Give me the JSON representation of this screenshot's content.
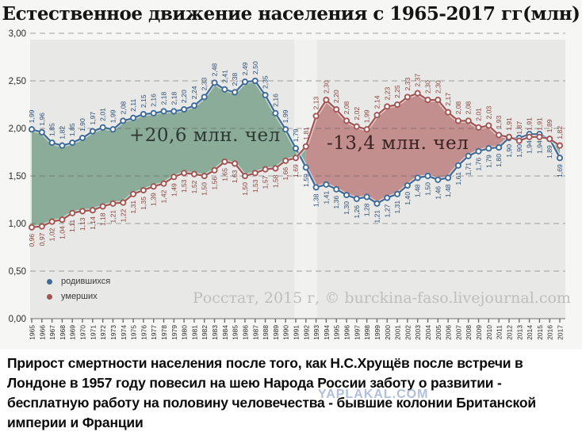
{
  "title": "Естественное движение населения с 1965-2017 гг(млн)",
  "annotations": {
    "surplus": "+20,6 млн. чел",
    "deficit": "-13,4 млн. чел"
  },
  "legend": {
    "items": [
      {
        "label": "родившихся",
        "color": "#3e6b99"
      },
      {
        "label": "умерших",
        "color": "#a25553"
      }
    ]
  },
  "watermark": "Росстат, 2015 г, © burckina-faso.livejournal.com",
  "caption": "Прирост смертности населения после того, как Н.С.Хрущёв после встречи в Лондоне в 1957 году повесил на шею Народа России заботу о развитии - бесплатную работу на половину человечества - бывшие колонии Британской империи и Франции",
  "overlay_watermark": "YAPLAKAL.COM",
  "chart_data": {
    "type": "line",
    "title": "Естественное движение населения с 1965-2017 гг(млн)",
    "x": [
      1965,
      1966,
      1967,
      1968,
      1969,
      1970,
      1971,
      1972,
      1973,
      1974,
      1975,
      1976,
      1977,
      1978,
      1979,
      1980,
      1981,
      1982,
      1983,
      1984,
      1985,
      1986,
      1987,
      1988,
      1989,
      1990,
      1991,
      1992,
      1993,
      1994,
      1995,
      1996,
      1997,
      1998,
      1999,
      2000,
      2001,
      2002,
      2003,
      2004,
      2005,
      2006,
      2007,
      2008,
      2009,
      2010,
      2011,
      2012,
      2013,
      2014,
      2015,
      2016,
      2017
    ],
    "series": [
      {
        "name": "родившихся",
        "color": "#3e6b99",
        "label_color": "#2d4e75",
        "values": [
          1.99,
          1.96,
          1.85,
          1.82,
          1.85,
          1.9,
          1.97,
          2.01,
          1.99,
          2.08,
          2.11,
          2.15,
          2.16,
          2.18,
          2.18,
          2.2,
          2.24,
          2.33,
          2.48,
          2.41,
          2.38,
          2.49,
          2.5,
          2.35,
          2.16,
          1.99,
          1.79,
          1.59,
          1.38,
          1.41,
          1.36,
          1.3,
          1.26,
          1.28,
          1.21,
          1.27,
          1.31,
          1.4,
          1.48,
          1.5,
          1.46,
          1.48,
          1.61,
          1.71,
          1.76,
          1.79,
          1.8,
          1.9,
          1.9,
          1.94,
          1.94,
          1.89,
          1.69
        ]
      },
      {
        "name": "умерших",
        "color": "#a25553",
        "label_color": "#89423f",
        "values": [
          0.96,
          0.97,
          1.02,
          1.04,
          1.11,
          1.13,
          1.14,
          1.18,
          1.21,
          1.22,
          1.31,
          1.35,
          1.39,
          1.42,
          1.49,
          1.53,
          1.52,
          1.5,
          1.56,
          1.65,
          1.63,
          1.5,
          1.53,
          1.57,
          1.58,
          1.66,
          1.69,
          1.81,
          2.13,
          2.3,
          2.2,
          2.08,
          2.02,
          1.99,
          2.14,
          2.23,
          2.25,
          2.33,
          2.37,
          2.3,
          2.3,
          2.17,
          2.08,
          2.08,
          2.01,
          2.03,
          1.93,
          1.91,
          1.87,
          1.91,
          1.91,
          1.89,
          1.82
        ]
      }
    ],
    "ylim": [
      0,
      3
    ],
    "yticks": [
      {
        "v": 3.0,
        "label": "3,00"
      },
      {
        "v": 2.5,
        "label": "2,50"
      },
      {
        "v": 2.0,
        "label": "2,00"
      },
      {
        "v": 1.5,
        "label": "1,50"
      },
      {
        "v": 1.0,
        "label": "1,00"
      },
      {
        "v": 0.5,
        "label": "0,50"
      },
      {
        "v": 0.0,
        "label": "0,00"
      }
    ],
    "grid": "dashed",
    "legend_position": "bottom-left",
    "fill_positive": "#8bac98",
    "fill_negative": "#c38f8e",
    "plot_bg": "#e8e8e6",
    "annotation_surplus": "+20,6 млн. чел",
    "annotation_deficit": "-13,4 млн. чел"
  }
}
